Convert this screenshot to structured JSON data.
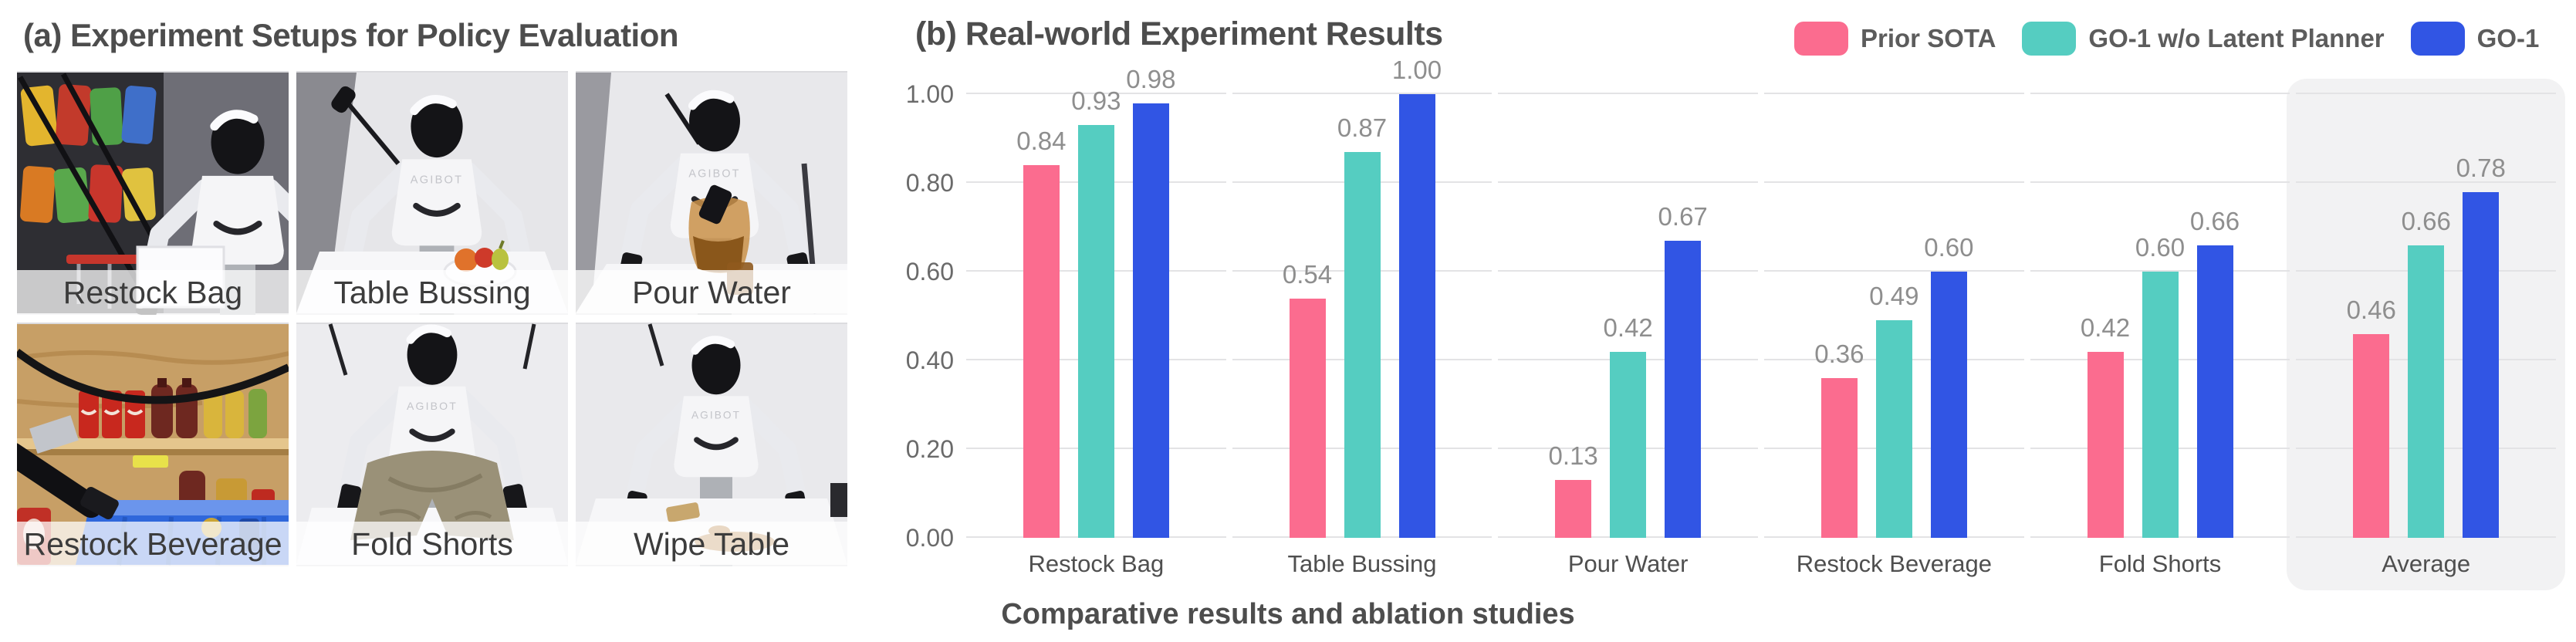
{
  "figure": {
    "panel_a": {
      "title": "(a) Experiment Setups for Policy Evaluation",
      "robot_brand": "AGIBOT",
      "setups": [
        "Restock Bag",
        "Table Bussing",
        "Pour Water",
        "Restock Beverage",
        "Fold Shorts",
        "Wipe Table"
      ]
    },
    "panel_b": {
      "title": "(b) Real-world Experiment Results",
      "caption": "Comparative results and ablation studies"
    }
  },
  "chart_data": {
    "type": "bar",
    "title": "(b) Real-world Experiment Results",
    "categories": [
      "Restock Bag",
      "Table Bussing",
      "Pour Water",
      "Restock Beverage",
      "Fold Shorts",
      "Average"
    ],
    "series": [
      {
        "name": "Prior SOTA",
        "color": "#FB6C8F",
        "values": [
          0.84,
          0.54,
          0.13,
          0.36,
          0.42,
          0.46
        ]
      },
      {
        "name": "GO-1 w/o Latent Planner",
        "color": "#55CDC1",
        "values": [
          0.93,
          0.87,
          0.42,
          0.49,
          0.6,
          0.66
        ]
      },
      {
        "name": "GO-1",
        "color": "#3155E4",
        "values": [
          0.98,
          1.0,
          0.67,
          0.6,
          0.66,
          0.78
        ]
      }
    ],
    "ylim": [
      0,
      1
    ],
    "yticks": [
      "1.00",
      "0.80",
      "0.60",
      "0.40",
      "0.20",
      "0.00"
    ],
    "grid": "horizontal",
    "legend_position": "top-right",
    "value_labels": true,
    "highlight_category": "Average",
    "highlight_color": "#F2F2F3",
    "value_label_color": "#8E8E8E",
    "gridline_color": "#E3E3E5"
  }
}
